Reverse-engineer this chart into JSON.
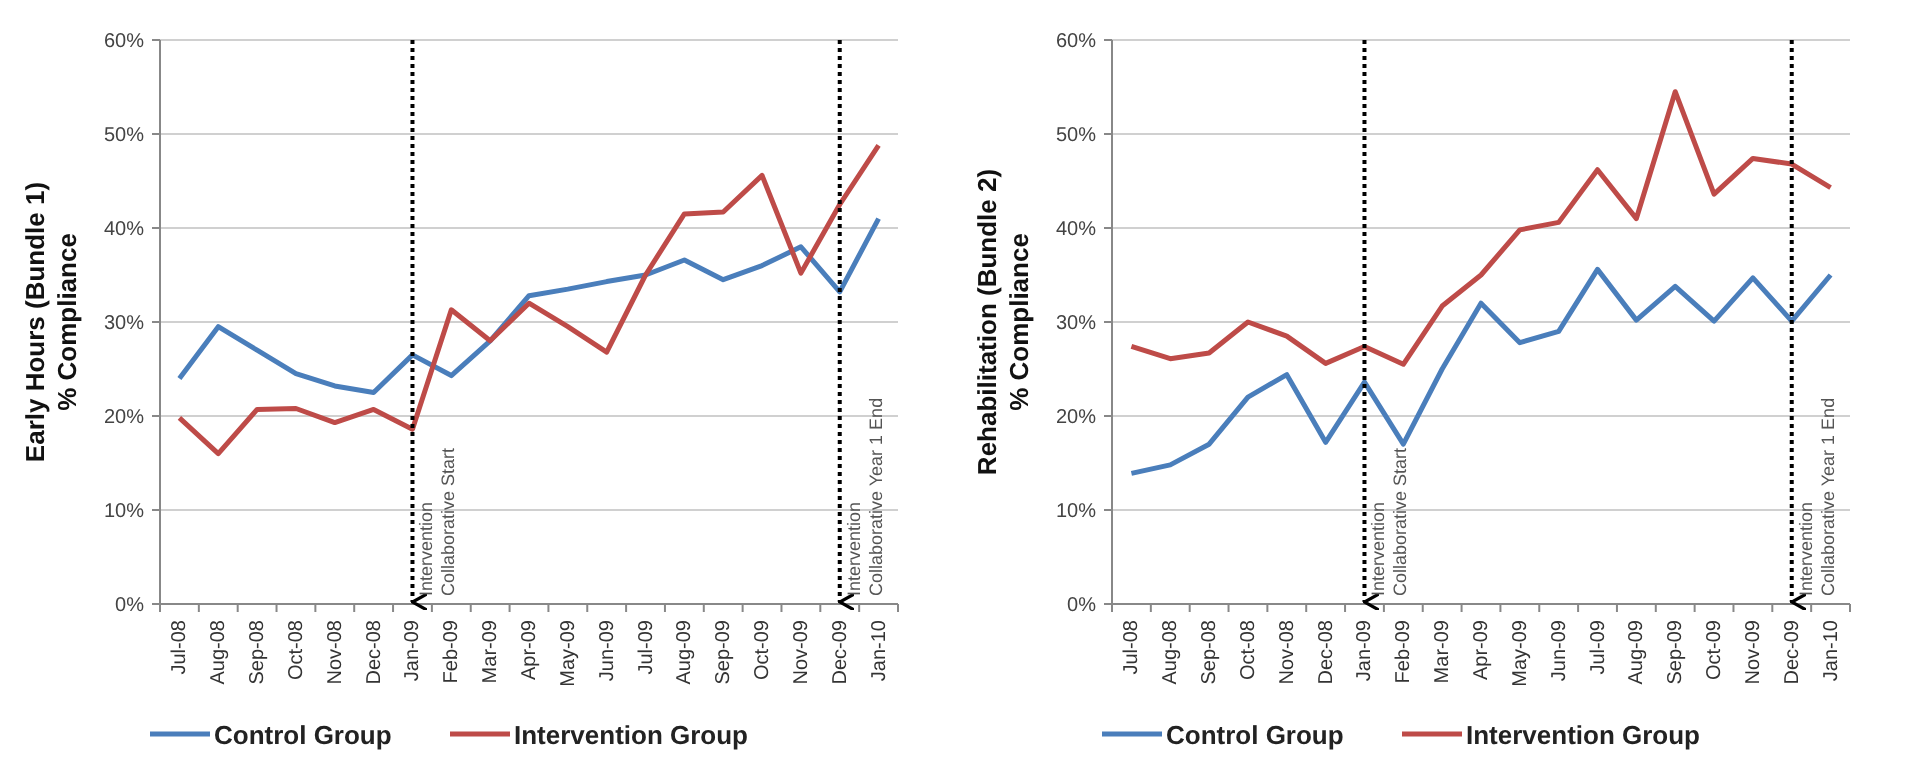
{
  "chart_data": [
    {
      "type": "line",
      "ylabel": "Early Hours (Bundle 1)\n% Compliance",
      "categories": [
        "Jul-08",
        "Aug-08",
        "Sep-08",
        "Oct-08",
        "Nov-08",
        "Dec-08",
        "Jan-09",
        "Feb-09",
        "Mar-09",
        "Apr-09",
        "May-09",
        "Jun-09",
        "Jul-09",
        "Aug-09",
        "Sep-09",
        "Oct-09",
        "Nov-09",
        "Dec-09",
        "Jan-10"
      ],
      "series": [
        {
          "name": "Control Group",
          "color": "#4a7ebb",
          "values": [
            24,
            29.5,
            27,
            24.5,
            23.2,
            22.5,
            26.5,
            24.3,
            28,
            32.8,
            33.5,
            34.3,
            35,
            36.6,
            34.5,
            36,
            38,
            33.2,
            41
          ]
        },
        {
          "name": "Intervention Group",
          "color": "#be4b48",
          "values": [
            19.8,
            16,
            20.7,
            20.8,
            19.3,
            20.7,
            18.6,
            31.3,
            28,
            32,
            29.5,
            26.8,
            35,
            41.5,
            41.7,
            45.6,
            35.2,
            42.5,
            48.8
          ]
        }
      ],
      "ylim": [
        0,
        60
      ],
      "yticks": [
        {
          "value": 0,
          "label": "0%"
        },
        {
          "value": 10,
          "label": "10%"
        },
        {
          "value": 20,
          "label": "20%"
        },
        {
          "value": 30,
          "label": "30%"
        },
        {
          "value": 40,
          "label": "40%"
        },
        {
          "value": 50,
          "label": "50%"
        },
        {
          "value": 60,
          "label": "60%"
        }
      ],
      "grid": "y",
      "legend": "bottom",
      "marker": "none",
      "line_style": "solid",
      "ref_lines": [
        {
          "axis": "x",
          "value": "Jan-09",
          "label": "Intervention\nCollaborative Start",
          "color": "#000000",
          "line_style": "dotted"
        },
        {
          "axis": "x",
          "value": "Dec-09",
          "label": "Intervention\nCollaborative Year 1 End",
          "color": "#000000",
          "line_style": "dotted"
        }
      ]
    },
    {
      "type": "line",
      "ylabel": "Rehabilitation (Bundle 2)\n% Compliance",
      "categories": [
        "Jul-08",
        "Aug-08",
        "Sep-08",
        "Oct-08",
        "Nov-08",
        "Dec-08",
        "Jan-09",
        "Feb-09",
        "Mar-09",
        "Apr-09",
        "May-09",
        "Jun-09",
        "Jul-09",
        "Aug-09",
        "Sep-09",
        "Oct-09",
        "Nov-09",
        "Dec-09",
        "Jan-10"
      ],
      "series": [
        {
          "name": "Control Group",
          "color": "#4a7ebb",
          "values": [
            13.9,
            14.8,
            17,
            22,
            24.4,
            17.2,
            23.6,
            17,
            25,
            32,
            27.8,
            29,
            35.6,
            30.2,
            33.8,
            30.1,
            34.7,
            30.1,
            35
          ]
        },
        {
          "name": "Intervention Group",
          "color": "#be4b48",
          "values": [
            27.4,
            26.1,
            26.7,
            30,
            28.5,
            25.6,
            27.4,
            25.5,
            31.7,
            35,
            39.8,
            40.6,
            46.2,
            41,
            54.5,
            43.6,
            47.4,
            46.8,
            44.3
          ]
        }
      ],
      "ylim": [
        0,
        60
      ],
      "yticks": [
        {
          "value": 0,
          "label": "0%"
        },
        {
          "value": 10,
          "label": "10%"
        },
        {
          "value": 20,
          "label": "20%"
        },
        {
          "value": 30,
          "label": "30%"
        },
        {
          "value": 40,
          "label": "40%"
        },
        {
          "value": 50,
          "label": "50%"
        },
        {
          "value": 60,
          "label": "60%"
        }
      ],
      "grid": "y",
      "legend": "bottom",
      "marker": "none",
      "line_style": "solid",
      "ref_lines": [
        {
          "axis": "x",
          "value": "Jan-09",
          "label": "Intervention\nCollaborative Start",
          "color": "#000000",
          "line_style": "dotted"
        },
        {
          "axis": "x",
          "value": "Dec-09",
          "label": "Intervention\nCollaborative Year 1 End",
          "color": "#000000",
          "line_style": "dotted"
        }
      ]
    }
  ]
}
